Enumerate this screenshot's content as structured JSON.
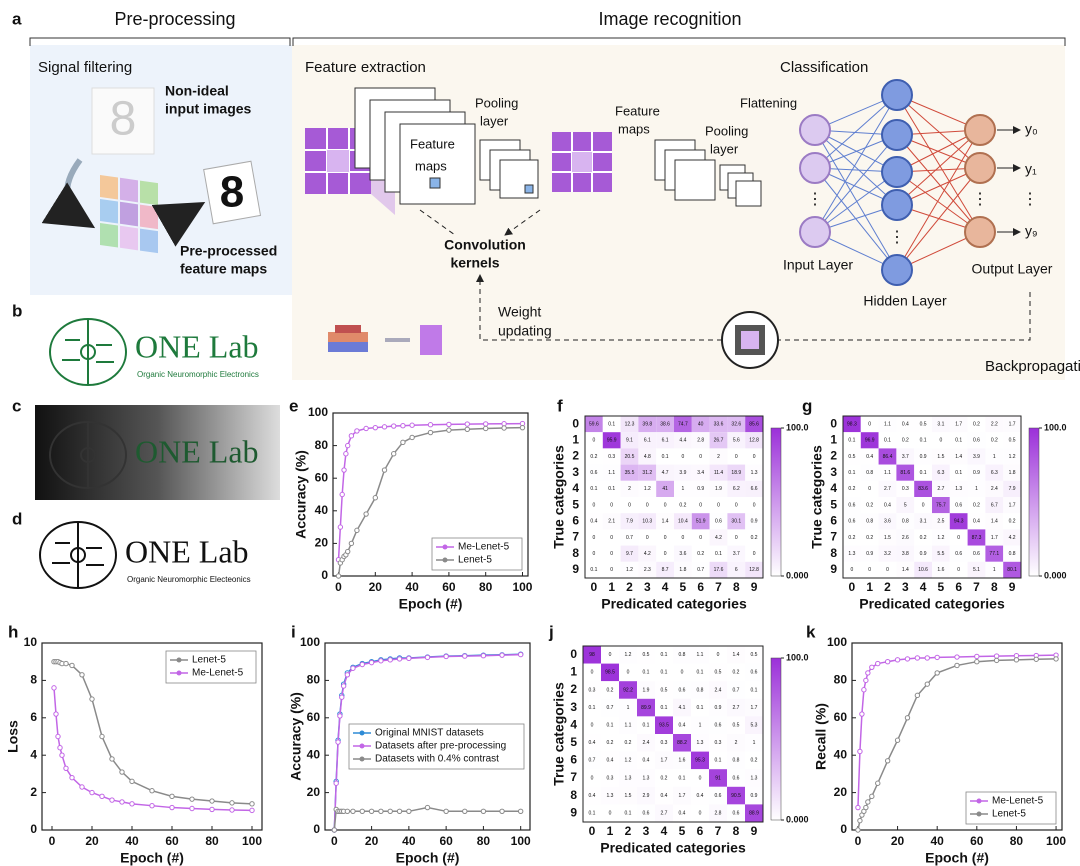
{
  "figure": {
    "panel": "a",
    "preprocessing": "Pre-processing",
    "image_recognition": "Image recognition",
    "signal_filtering": "Signal filtering",
    "non_ideal": [
      "Non-ideal",
      "input images"
    ],
    "preprocessed": [
      "Pre-processed",
      "feature maps"
    ],
    "feature_extraction": "Feature extraction",
    "feature_maps_1": [
      "Feature",
      "maps"
    ],
    "pooling_1": [
      "Pooling",
      "layer"
    ],
    "feature_maps_2": [
      "Feature",
      "maps"
    ],
    "pooling_2": [
      "Pooling",
      "layer"
    ],
    "flattening": "Flattening",
    "kernels": [
      "Convolution",
      "kernels"
    ],
    "classification": "Classification",
    "input_layer": "Input Layer",
    "hidden_layer": "Hidden Layer",
    "output_layer": "Output  Layer",
    "outputs": [
      "y₀",
      "y₁",
      "y₉"
    ],
    "weight_updating": [
      "Weight",
      "updating"
    ],
    "backpropagation": "Backpropagation"
  },
  "logos": {
    "b": {
      "panel": "b",
      "name": "ONE Lab",
      "subtitle": "Organic Neuromorphic Electronics"
    },
    "c": {
      "panel": "c",
      "name": "ONE Lab"
    },
    "d": {
      "panel": "d",
      "name": "ONE Lab",
      "subtitle": "Organic Neuromorphic Electeonics"
    }
  },
  "chart_data": [
    {
      "type": "line",
      "panel": "e",
      "x_label": "Epoch (#)",
      "y_label": "Accuracy (%)",
      "x": [
        0,
        1,
        2,
        3,
        4,
        5,
        7,
        10,
        15,
        20,
        25,
        30,
        35,
        40,
        50,
        60,
        70,
        80,
        90,
        100
      ],
      "xlim": [
        -3,
        103
      ],
      "xticks": [
        0,
        20,
        40,
        60,
        80,
        100
      ],
      "ylim": [
        0,
        100
      ],
      "yticks": [
        0,
        20,
        40,
        60,
        80,
        100
      ],
      "legend": "lower right",
      "series": [
        {
          "name": "Me-Lenet-5",
          "color": "#c266e6",
          "values": [
            10,
            30,
            50,
            65,
            75,
            80,
            86,
            89,
            90.5,
            91,
            91.5,
            92,
            92.2,
            92.5,
            92.8,
            93,
            93.2,
            93.3,
            93.4,
            93.5
          ]
        },
        {
          "name": "Lenet-5",
          "color": "#8a8a8a",
          "values": [
            0,
            8,
            10,
            12,
            13,
            15,
            20,
            28,
            38,
            48,
            65,
            75,
            82,
            85,
            88,
            89.5,
            90,
            90.5,
            90.8,
            91
          ]
        }
      ]
    },
    {
      "type": "heatmap",
      "panel": "f",
      "x_label": "Predicated categories",
      "y_label": "True categories",
      "categories": [
        "0",
        "1",
        "2",
        "3",
        "4",
        "5",
        "6",
        "7",
        "8",
        "9"
      ],
      "color": "#9b30d9",
      "clim": [
        0,
        100
      ],
      "colorbar_ticks": [
        {
          "value": 0,
          "label": "0.000"
        },
        {
          "value": 100,
          "label": "100.0"
        }
      ],
      "values": [
        [
          59.6,
          0.1,
          12.3,
          39.8,
          38.6,
          74.7,
          40.0,
          33.6,
          32.6,
          85.6
        ],
        [
          0.0,
          95.9,
          9.1,
          6.1,
          6.1,
          4.4,
          2.8,
          26.7,
          5.6,
          12.8
        ],
        [
          0.2,
          0.3,
          20.5,
          4.8,
          0.1,
          0.0,
          0.0,
          2.0,
          0.0,
          0.0
        ],
        [
          0.6,
          1.1,
          35.5,
          31.2,
          4.7,
          3.9,
          3.4,
          11.4,
          18.9,
          1.3
        ],
        [
          0.1,
          0.1,
          2.0,
          1.2,
          41.0,
          1.0,
          0.9,
          1.9,
          6.2,
          6.6
        ],
        [
          0.0,
          0.0,
          0.0,
          0.0,
          0.0,
          0.2,
          0.0,
          0.0,
          0.0,
          0.0
        ],
        [
          0.4,
          2.1,
          7.9,
          10.3,
          1.4,
          10.4,
          51.9,
          0.6,
          30.1,
          0.9
        ],
        [
          0.0,
          0.0,
          0.7,
          0.0,
          0.0,
          0.0,
          0.0,
          4.2,
          0.0,
          0.2
        ],
        [
          0.0,
          0.0,
          9.7,
          4.2,
          0.0,
          3.6,
          0.2,
          0.1,
          3.7,
          0.0
        ],
        [
          0.1,
          0.0,
          1.2,
          2.3,
          8.7,
          1.8,
          0.7,
          17.6,
          6.0,
          12.8
        ]
      ]
    },
    {
      "type": "heatmap",
      "panel": "g",
      "x_label": "Predicated categories",
      "y_label": "True categories",
      "categories": [
        "0",
        "1",
        "2",
        "3",
        "4",
        "5",
        "6",
        "7",
        "8",
        "9"
      ],
      "color": "#9b30d9",
      "clim": [
        0,
        100
      ],
      "colorbar_ticks": [
        {
          "value": 0,
          "label": "0.000"
        },
        {
          "value": 100,
          "label": "100.0"
        }
      ],
      "values": [
        [
          98.3,
          0.0,
          1.1,
          0.4,
          0.5,
          3.1,
          1.7,
          0.2,
          2.2,
          1.7
        ],
        [
          0.1,
          96.9,
          0.1,
          0.2,
          0.1,
          0.0,
          0.1,
          0.6,
          0.2,
          0.5
        ],
        [
          0.5,
          0.4,
          86.4,
          3.7,
          0.9,
          1.5,
          1.4,
          3.9,
          1.0,
          1.2
        ],
        [
          0.1,
          0.8,
          1.1,
          81.6,
          0.1,
          6.3,
          0.1,
          0.9,
          6.3,
          1.8
        ],
        [
          0.2,
          0.0,
          2.7,
          0.3,
          83.6,
          2.7,
          1.3,
          1.0,
          2.4,
          7.9
        ],
        [
          0.6,
          0.2,
          0.4,
          5.0,
          0.0,
          75.7,
          0.6,
          0.2,
          6.7,
          1.7
        ],
        [
          0.6,
          0.8,
          3.6,
          0.8,
          3.1,
          2.5,
          94.3,
          0.4,
          1.4,
          0.2
        ],
        [
          0.2,
          0.2,
          1.5,
          2.6,
          0.2,
          1.2,
          0.0,
          87.3,
          1.7,
          4.2
        ],
        [
          1.3,
          0.9,
          3.2,
          3.8,
          0.9,
          5.5,
          0.6,
          0.6,
          77.1,
          0.8
        ],
        [
          0.0,
          0.0,
          0.0,
          1.4,
          10.6,
          1.6,
          0.0,
          5.1,
          1.0,
          80.1
        ]
      ]
    },
    {
      "type": "line",
      "panel": "h",
      "x_label": "Epoch (#)",
      "y_label": "Loss",
      "x": [
        0,
        1,
        2,
        3,
        4,
        5,
        7,
        10,
        15,
        20,
        25,
        30,
        35,
        40,
        50,
        60,
        70,
        80,
        90,
        100
      ],
      "xlim": [
        -5,
        105
      ],
      "xticks": [
        0,
        20,
        40,
        60,
        80,
        100
      ],
      "ylim": [
        0,
        10
      ],
      "yticks": [
        0,
        2,
        4,
        6,
        8,
        10
      ],
      "legend": "upper right",
      "series": [
        {
          "name": "Lenet-5",
          "color": "#8a8a8a",
          "values": [
            null,
            9.0,
            9.0,
            9.0,
            8.95,
            8.9,
            8.9,
            8.8,
            8.3,
            7.0,
            5.0,
            3.8,
            3.1,
            2.6,
            2.1,
            1.8,
            1.65,
            1.55,
            1.45,
            1.4
          ]
        },
        {
          "name": "Me-Lenet-5",
          "color": "#c266e6",
          "values": [
            null,
            7.6,
            6.2,
            5.0,
            4.4,
            4.0,
            3.3,
            2.8,
            2.3,
            2.0,
            1.8,
            1.6,
            1.5,
            1.4,
            1.3,
            1.2,
            1.15,
            1.1,
            1.07,
            1.05
          ]
        }
      ]
    },
    {
      "type": "line",
      "panel": "i",
      "x_label": "Epoch (#)",
      "y_label": "Accuracy (%)",
      "x": [
        0,
        1,
        2,
        3,
        4,
        5,
        7,
        10,
        15,
        20,
        25,
        30,
        35,
        40,
        50,
        60,
        70,
        80,
        90,
        100
      ],
      "xlim": [
        -5,
        105
      ],
      "xticks": [
        0,
        20,
        40,
        60,
        80,
        100
      ],
      "ylim": [
        0,
        100
      ],
      "yticks": [
        0,
        20,
        40,
        60,
        80,
        100
      ],
      "legend": "center right",
      "series": [
        {
          "name": "Original MNIST datasets",
          "color": "#2e8bd6",
          "values": [
            0,
            26,
            48,
            62,
            72,
            78,
            84,
            87,
            89,
            90,
            91,
            91.5,
            92,
            92,
            92.5,
            93,
            93.2,
            93.5,
            93.7,
            94
          ]
        },
        {
          "name": "Datasets after pre-processing",
          "color": "#c266e6",
          "values": [
            0,
            25,
            47,
            61,
            71,
            77,
            83,
            86.5,
            88.5,
            89.5,
            90.5,
            91,
            91.5,
            91.8,
            92.3,
            92.8,
            93,
            93.2,
            93.5,
            93.8
          ]
        },
        {
          "name": "Datasets with 0.4% contrast",
          "color": "#8a8a8a",
          "values": [
            0,
            11,
            10,
            10,
            10,
            10,
            10,
            10,
            10,
            10,
            10,
            10,
            10,
            10,
            12,
            10,
            10,
            10,
            10,
            10
          ]
        }
      ]
    },
    {
      "type": "heatmap",
      "panel": "j",
      "x_label": "Predicated categories",
      "y_label": "True categories",
      "categories": [
        "0",
        "1",
        "2",
        "3",
        "4",
        "5",
        "6",
        "7",
        "8",
        "9"
      ],
      "color": "#9b30d9",
      "clim": [
        0,
        100
      ],
      "colorbar_ticks": [
        {
          "value": 0,
          "label": "0.000"
        },
        {
          "value": 100,
          "label": "100.0"
        }
      ],
      "values": [
        [
          98.0,
          0.0,
          1.2,
          0.5,
          0.1,
          0.8,
          1.1,
          0.0,
          1.4,
          0.5
        ],
        [
          0.0,
          98.5,
          0.0,
          0.1,
          0.1,
          0.0,
          0.1,
          0.5,
          0.2,
          0.6
        ],
        [
          0.3,
          0.2,
          92.2,
          1.9,
          0.5,
          0.6,
          0.8,
          2.4,
          0.7,
          0.1
        ],
        [
          0.1,
          0.7,
          1.0,
          89.9,
          0.1,
          4.1,
          0.1,
          0.9,
          2.7,
          1.7
        ],
        [
          0.0,
          0.1,
          1.1,
          0.1,
          93.5,
          0.4,
          1.0,
          0.6,
          0.5,
          5.3
        ],
        [
          0.4,
          0.2,
          0.2,
          2.4,
          0.3,
          88.2,
          1.3,
          0.3,
          2.0,
          1.0
        ],
        [
          0.7,
          0.4,
          1.2,
          0.4,
          1.7,
          1.6,
          95.3,
          0.1,
          0.8,
          0.2
        ],
        [
          0.0,
          0.3,
          1.3,
          1.3,
          0.2,
          0.1,
          0.0,
          91.0,
          0.6,
          1.3
        ],
        [
          0.4,
          1.3,
          1.5,
          2.9,
          0.4,
          1.7,
          0.4,
          0.6,
          90.5,
          0.9
        ],
        [
          0.1,
          0.0,
          0.1,
          0.6,
          2.7,
          0.4,
          0.0,
          2.8,
          0.6,
          88.9
        ]
      ]
    },
    {
      "type": "line",
      "panel": "k",
      "x_label": "Epoch (#)",
      "y_label": "Recall (%)",
      "x": [
        0,
        1,
        2,
        3,
        4,
        5,
        7,
        10,
        15,
        20,
        25,
        30,
        35,
        40,
        50,
        60,
        70,
        80,
        90,
        100
      ],
      "xlim": [
        -3,
        103
      ],
      "xticks": [
        0,
        20,
        40,
        60,
        80,
        100
      ],
      "ylim": [
        0,
        100
      ],
      "yticks": [
        0,
        20,
        40,
        60,
        80,
        100
      ],
      "legend": "lower right",
      "series": [
        {
          "name": "Me-Lenet-5",
          "color": "#c266e6",
          "values": [
            12,
            42,
            62,
            75,
            80,
            84,
            87,
            89,
            90,
            91,
            91.5,
            92,
            92,
            92.3,
            92.5,
            92.8,
            93,
            93.2,
            93.3,
            93.5
          ]
        },
        {
          "name": "Lenet-5",
          "color": "#8a8a8a",
          "values": [
            0,
            5,
            8,
            10,
            12,
            15,
            18,
            25,
            37,
            48,
            60,
            72,
            78,
            84,
            88,
            90,
            90.7,
            91,
            91.3,
            91.5
          ]
        }
      ]
    }
  ]
}
